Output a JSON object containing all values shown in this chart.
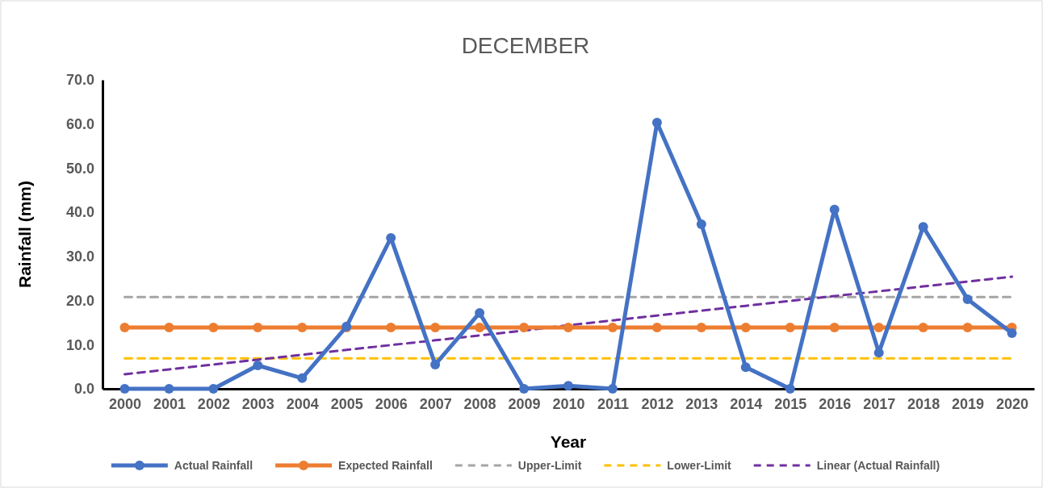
{
  "chart_data": {
    "type": "line",
    "title": "DECEMBER",
    "xlabel": "Year",
    "ylabel": "Rainfall (mm)",
    "categories": [
      "2000",
      "2001",
      "2002",
      "2003",
      "2004",
      "2005",
      "2006",
      "2007",
      "2008",
      "2009",
      "2010",
      "2011",
      "2012",
      "2013",
      "2014",
      "2015",
      "2016",
      "2017",
      "2018",
      "2019",
      "2020"
    ],
    "series": [
      {
        "name": "Actual Rainfall",
        "color": "#4472c4",
        "marker": "circle",
        "line_style": "solid",
        "values": [
          0,
          0,
          0,
          5.3,
          2.4,
          14.1,
          34.2,
          5.5,
          17.2,
          0,
          0.7,
          0,
          60.3,
          37.3,
          4.9,
          0,
          40.6,
          8.2,
          36.7,
          20.3,
          12.6
        ]
      },
      {
        "name": "Expected Rainfall",
        "color": "#ed7d31",
        "marker": "circle",
        "line_style": "solid",
        "values": [
          13.9,
          13.9,
          13.9,
          13.9,
          13.9,
          13.9,
          13.9,
          13.9,
          13.9,
          13.9,
          13.9,
          13.9,
          13.9,
          13.9,
          13.9,
          13.9,
          13.9,
          13.9,
          13.9,
          13.9,
          13.9
        ]
      },
      {
        "name": "Upper-Limit",
        "color": "#a5a5a5",
        "marker": "none",
        "line_style": "dashed",
        "values": [
          20.8,
          20.8,
          20.8,
          20.8,
          20.8,
          20.8,
          20.8,
          20.8,
          20.8,
          20.8,
          20.8,
          20.8,
          20.8,
          20.8,
          20.8,
          20.8,
          20.8,
          20.8,
          20.8,
          20.8,
          20.8
        ]
      },
      {
        "name": "Lower-Limit",
        "color": "#ffc000",
        "marker": "none",
        "line_style": "dashed",
        "values": [
          6.9,
          6.9,
          6.9,
          6.9,
          6.9,
          6.9,
          6.9,
          6.9,
          6.9,
          6.9,
          6.9,
          6.9,
          6.9,
          6.9,
          6.9,
          6.9,
          6.9,
          6.9,
          6.9,
          6.9,
          6.9
        ]
      },
      {
        "name": "Linear (Actual Rainfall)",
        "color": "#7030a0",
        "marker": "none",
        "line_style": "dashed",
        "values": [
          3.3,
          4.4,
          5.5,
          6.6,
          7.7,
          8.8,
          9.9,
          11.0,
          12.1,
          13.2,
          14.4,
          15.5,
          16.6,
          17.7,
          18.8,
          19.9,
          21.0,
          22.1,
          23.2,
          24.3,
          25.4
        ]
      }
    ],
    "ylim": [
      0,
      70
    ],
    "yticks": [
      {
        "value": 0,
        "label": "0.0"
      },
      {
        "value": 10,
        "label": "10.0"
      },
      {
        "value": 20,
        "label": "20.0"
      },
      {
        "value": 30,
        "label": "30.0"
      },
      {
        "value": 40,
        "label": "40.0"
      },
      {
        "value": 50,
        "label": "50.0"
      },
      {
        "value": 60,
        "label": "60.0"
      },
      {
        "value": 70,
        "label": "70.0"
      }
    ],
    "legend": "bottom"
  }
}
